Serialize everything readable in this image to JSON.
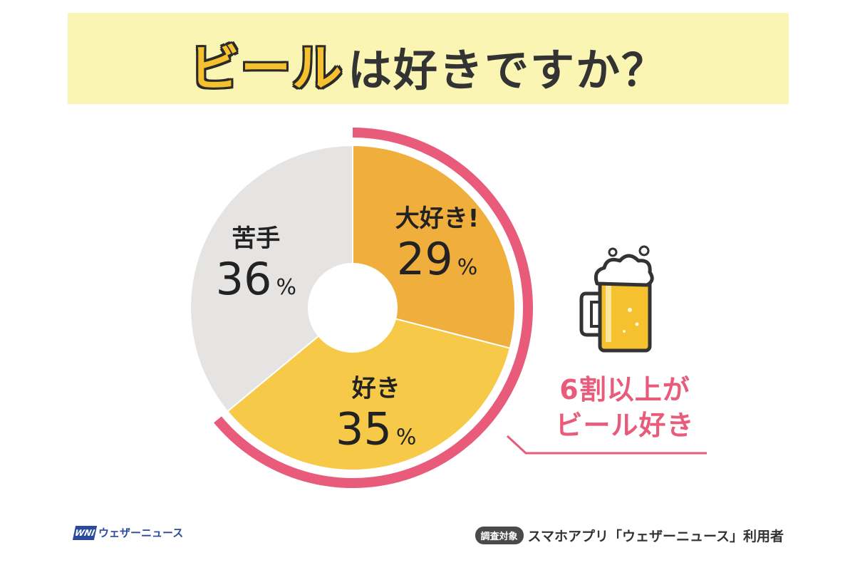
{
  "title": {
    "highlight": "ビール",
    "rest": "は好きですか？"
  },
  "chart_data": {
    "type": "pie",
    "donut": true,
    "slices": [
      {
        "label": "大好き!",
        "value": 29,
        "unit": "%",
        "color": "#f0ae3c"
      },
      {
        "label": "好き",
        "value": 35,
        "unit": "%",
        "color": "#f6ca48"
      },
      {
        "label": "苦手",
        "value": 36,
        "unit": "%",
        "color": "#e5e4e2"
      }
    ],
    "highlight_arc_color": "#e85b7b"
  },
  "callout": {
    "line1": "6割以上が",
    "line2": "ビール好き"
  },
  "icon": "beer-mug-icon",
  "footer": {
    "logo_mark": "WNI",
    "logo_text": "ウェザーニュース",
    "survey_badge": "調査対象",
    "survey_text": "スマホアプリ「ウェザーニュース」利用者"
  }
}
